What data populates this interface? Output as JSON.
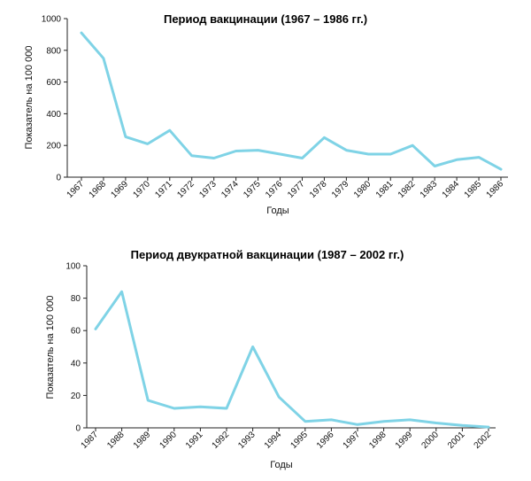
{
  "chart_data": [
    {
      "type": "line",
      "title": "Период вакцинации (1967 – 1986 гг.)",
      "xlabel": "Годы",
      "ylabel": "Показатель на 100 000",
      "ylim": [
        0,
        1000
      ],
      "yticks": [
        "0",
        "200",
        "400",
        "600",
        "800",
        "1000"
      ],
      "categories": [
        "1967",
        "1968",
        "1969",
        "1970",
        "1971",
        "1972",
        "1973",
        "1974",
        "1975",
        "1976",
        "1977",
        "1978",
        "1979",
        "1980",
        "1981",
        "1982",
        "1983",
        "1984",
        "1985",
        "1986"
      ],
      "values": [
        910,
        750,
        255,
        210,
        295,
        135,
        120,
        165,
        170,
        145,
        120,
        250,
        170,
        145,
        145,
        200,
        70,
        110,
        125,
        50
      ],
      "color": "#7fd3e6"
    },
    {
      "type": "line",
      "title": "Период двукратной вакцинации (1987 – 2002 гг.)",
      "xlabel": "Годы",
      "ylabel": "Показатель на 100 000",
      "ylim": [
        0,
        100
      ],
      "yticks": [
        "0",
        "20",
        "40",
        "60",
        "80",
        "100"
      ],
      "categories": [
        "1987",
        "1988",
        "1989",
        "1990",
        "1991",
        "1992",
        "1993",
        "1994",
        "1995",
        "1996",
        "1997",
        "1998",
        "1999",
        "2000",
        "2001",
        "2002"
      ],
      "values": [
        61,
        84,
        17,
        12,
        13,
        12,
        50,
        19,
        4,
        5,
        2,
        4,
        5,
        3,
        1.5,
        0.5
      ],
      "color": "#7fd3e6"
    }
  ]
}
